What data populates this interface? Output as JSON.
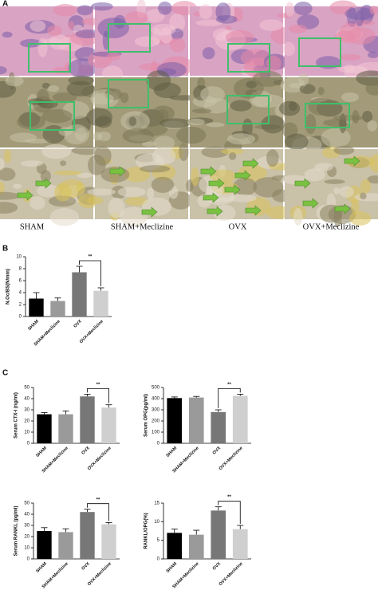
{
  "panel_labels": [
    "A",
    "B",
    "C"
  ],
  "panel_a": {
    "columns": [
      "SHAM",
      "SHAM+Meclizine",
      "OVX",
      "OVX+Meclizine"
    ]
  },
  "chart_data": [
    {
      "type": "bar",
      "y_label": "N.Oc/BS(N/mm)",
      "categories": [
        "SHAM",
        "SHAM+Meclizine",
        "OVX",
        "OVX+Meclizine"
      ],
      "values": [
        3.0,
        2.6,
        7.4,
        4.3
      ],
      "errors": [
        1.0,
        0.5,
        1.0,
        0.5
      ],
      "colors": [
        "#000000",
        "#9a9a9a",
        "#777777",
        "#cfcfcf"
      ],
      "ylim": [
        0,
        10
      ],
      "yticks": [
        0,
        2,
        4,
        6,
        8,
        10
      ],
      "annotation": "**"
    },
    {
      "type": "bar",
      "y_label": "Serum CTX-I (ng/ml)",
      "categories": [
        "SHAM",
        "SHAM+Meclizine",
        "OVX",
        "OVX+Meclizine"
      ],
      "values": [
        26,
        26,
        42,
        32
      ],
      "errors": [
        1.5,
        3,
        2,
        2.5
      ],
      "colors": [
        "#000000",
        "#9a9a9a",
        "#777777",
        "#cfcfcf"
      ],
      "ylim": [
        0,
        50
      ],
      "yticks": [
        0,
        10,
        20,
        30,
        40,
        50
      ],
      "annotation": "**"
    },
    {
      "type": "bar",
      "y_label": "Serum OPG(pg/ml)",
      "categories": [
        "SHAM",
        "SHAM+Meclizine",
        "OVX",
        "OVX+Meclizine"
      ],
      "values": [
        405,
        410,
        280,
        425
      ],
      "errors": [
        10,
        10,
        20,
        15
      ],
      "colors": [
        "#000000",
        "#9a9a9a",
        "#777777",
        "#cfcfcf"
      ],
      "ylim": [
        0,
        500
      ],
      "yticks": [
        0,
        100,
        200,
        300,
        400,
        500
      ],
      "annotation": "**"
    },
    {
      "type": "bar",
      "y_label": "Serum RANKL (pg/ml)",
      "categories": [
        "SHAM",
        "SHAM+Meclizine",
        "OVX",
        "OVX+Meclizine"
      ],
      "values": [
        25,
        24,
        42,
        31
      ],
      "errors": [
        3,
        3,
        2.5,
        1.5
      ],
      "colors": [
        "#000000",
        "#9a9a9a",
        "#777777",
        "#cfcfcf"
      ],
      "ylim": [
        0,
        50
      ],
      "yticks": [
        0,
        10,
        20,
        30,
        40,
        50
      ],
      "annotation": "**"
    },
    {
      "type": "bar",
      "y_label": "RANKL/OPG(%)",
      "categories": [
        "SHAM",
        "SHAM+Meclizine",
        "OVX",
        "OVX+Meclizine"
      ],
      "values": [
        7,
        6.5,
        13,
        8
      ],
      "errors": [
        1,
        1.2,
        1,
        1
      ],
      "colors": [
        "#000000",
        "#9a9a9a",
        "#777777",
        "#cfcfcf"
      ],
      "ylim": [
        0,
        15
      ],
      "yticks": [
        0,
        5,
        10,
        15
      ],
      "annotation": "**"
    }
  ]
}
